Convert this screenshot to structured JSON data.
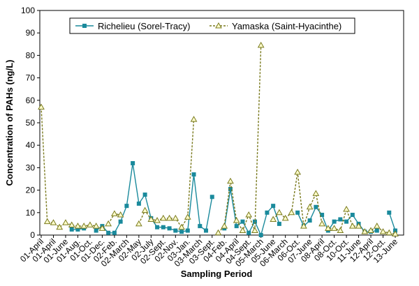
{
  "chart_data": {
    "type": "line",
    "x_label": "Sampling Period",
    "y_label": "Concentration of PAHs (ng/L)",
    "categories": [
      "01-April",
      null,
      "01-April",
      null,
      "01-June",
      null,
      "01-Aug.",
      null,
      "01-Oct.",
      null,
      "01-Dec.",
      null,
      "02-Feb.",
      null,
      "02-March",
      null,
      "02-May",
      null,
      "02-July",
      null,
      "02-Sept.",
      null,
      "02-Nov.",
      null,
      "03-Jan.",
      null,
      "03-March",
      null,
      "03-Sept.",
      null,
      "04-Feb.",
      null,
      "04-April",
      null,
      "04-Sept.",
      null,
      "05-March",
      null,
      "05-June",
      null,
      "06-March",
      null,
      "06-Oct.",
      null,
      "07-June",
      null,
      "08-April",
      null,
      "08-Oct.",
      null,
      "10-Oct.",
      null,
      "11-June",
      null,
      "12-April",
      null,
      "12-Oct.",
      null,
      "13-June"
    ],
    "series": [
      {
        "name": "Richelieu (Sorel-Tracy)",
        "color": "#1a8a9c",
        "marker": "square",
        "dash": false,
        "values": [
          null,
          null,
          null,
          null,
          null,
          2.5,
          2.5,
          3,
          null,
          2,
          4,
          1,
          1,
          6,
          13,
          32,
          14,
          18,
          7.5,
          3.5,
          3.5,
          3,
          2,
          1.5,
          2,
          27,
          4,
          2,
          17,
          null,
          3,
          20.5,
          4,
          6,
          1,
          6,
          0,
          10,
          13,
          5,
          null,
          null,
          10,
          4,
          6.5,
          12.5,
          9,
          2,
          6,
          7,
          6,
          9,
          5,
          1.5,
          1.5,
          2,
          null,
          10,
          2
        ]
      },
      {
        "name": "Yamaska (Saint-Hyacinthe)",
        "color": "#7a7a1e",
        "marker": "triangle",
        "dash": true,
        "values": [
          57,
          6,
          5.5,
          3.5,
          5.5,
          4.5,
          4,
          4,
          4.5,
          4,
          3,
          5,
          9.5,
          9,
          null,
          null,
          5,
          11,
          7,
          6.5,
          7.5,
          7.5,
          7.5,
          3.5,
          8,
          51.5,
          null,
          null,
          null,
          1,
          4,
          24,
          6.5,
          2,
          9,
          2,
          84.5,
          null,
          7,
          10,
          7.5,
          10,
          28,
          4,
          12.5,
          18.5,
          5,
          3,
          3,
          2,
          11.5,
          4,
          4,
          1.5,
          2,
          4,
          1.5,
          1,
          0.5
        ]
      }
    ],
    "ylim": [
      0,
      100
    ],
    "yticks": [
      0,
      10,
      20,
      30,
      40,
      50,
      60,
      70,
      80,
      90,
      100
    ],
    "grid": false,
    "legend": "top"
  }
}
